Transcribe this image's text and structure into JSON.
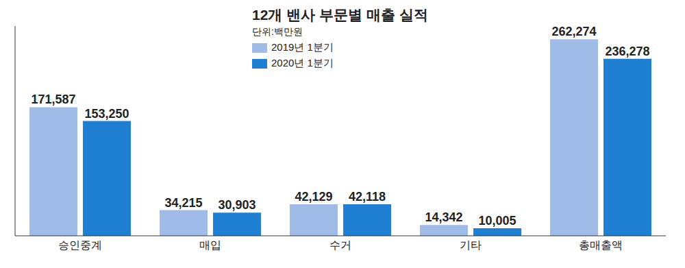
{
  "chart_data": {
    "type": "bar",
    "title": "12개 밴사 부문별 매출 실적",
    "subtitle": "단위:백만원",
    "categories": [
      "승인중계",
      "매입",
      "수거",
      "기타",
      "총매출액"
    ],
    "series": [
      {
        "name": "2019년 1분기",
        "color": "#9fbbe8",
        "values": [
          171587,
          34215,
          42129,
          14342,
          262274
        ],
        "value_labels": [
          "171,587",
          "34,215",
          "42,129",
          "14,342",
          "262,274"
        ]
      },
      {
        "name": "2020년 1분기",
        "color": "#1f7fd3",
        "values": [
          153250,
          30903,
          42118,
          10005,
          236278
        ],
        "value_labels": [
          "153,250",
          "30,903",
          "42,118",
          "10,005",
          "236,278"
        ]
      }
    ],
    "ylim": [
      0,
      280000
    ],
    "data_labels": true,
    "tick_labels": "x",
    "legend": "top"
  }
}
